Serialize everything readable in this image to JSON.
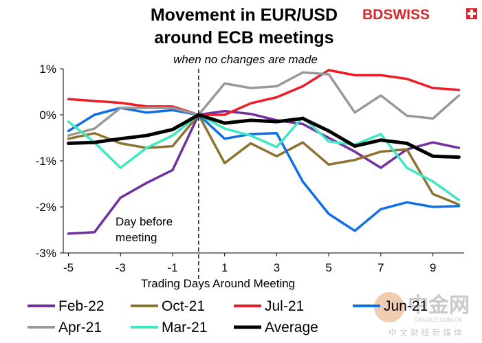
{
  "chart_data": {
    "type": "line",
    "title_line1": "Movement in EUR/USD",
    "title_line2": "around ECB meetings",
    "subtitle": "when no changes are made",
    "xlabel": "Trading Days Around Meeting",
    "ylabel": "",
    "x": [
      -5,
      -4,
      -3,
      -2,
      -1,
      0,
      1,
      2,
      3,
      4,
      5,
      6,
      7,
      8,
      9,
      10
    ],
    "x_tick_labels": [
      "-5",
      "-3",
      "-1",
      "1",
      "3",
      "5",
      "7",
      "9"
    ],
    "x_tick_values": [
      -5,
      -3,
      -1,
      1,
      3,
      5,
      7,
      9
    ],
    "xlim": [
      -5.2,
      10.2
    ],
    "y_tick_labels": [
      "1%",
      "0%",
      "-1%",
      "-2%",
      "-3%"
    ],
    "y_tick_values": [
      1,
      0,
      -1,
      -2,
      -3
    ],
    "ylim": [
      -3,
      1
    ],
    "grid": false,
    "reference_line_x": 0,
    "annotation": [
      "Day before",
      "meeting"
    ],
    "legend_position": "bottom",
    "series": [
      {
        "name": "Feb-22",
        "color": "#7030a0",
        "values": [
          -2.58,
          -2.55,
          -1.8,
          -1.48,
          -1.2,
          0.0,
          0.08,
          0.02,
          -0.12,
          -0.2,
          -0.5,
          -0.8,
          -1.15,
          -0.75,
          -0.6,
          -0.72
        ]
      },
      {
        "name": "Oct-21",
        "color": "#8c7330",
        "values": [
          -0.52,
          -0.4,
          -0.62,
          -0.72,
          -0.68,
          0.0,
          -1.05,
          -0.62,
          -0.9,
          -0.6,
          -1.08,
          -0.98,
          -0.8,
          -0.75,
          -1.72,
          -1.95
        ]
      },
      {
        "name": "Jul-21",
        "color": "#ee1c25",
        "values": [
          0.34,
          0.3,
          0.26,
          0.18,
          0.18,
          0.0,
          0.0,
          0.25,
          0.38,
          0.62,
          0.97,
          0.86,
          0.86,
          0.78,
          0.58,
          0.54
        ]
      },
      {
        "name": "Jun-21",
        "color": "#0f6fe8",
        "values": [
          -0.35,
          0.0,
          0.15,
          0.05,
          0.1,
          0.0,
          -0.52,
          -0.42,
          -0.4,
          -1.45,
          -2.15,
          -2.52,
          -2.05,
          -1.9,
          -2.0,
          -1.98
        ]
      },
      {
        "name": "Apr-21",
        "color": "#999999",
        "values": [
          -0.45,
          -0.3,
          0.15,
          0.15,
          0.15,
          0.0,
          0.68,
          0.58,
          0.62,
          0.92,
          0.88,
          0.05,
          0.42,
          -0.02,
          -0.08,
          0.42
        ]
      },
      {
        "name": "Mar-21",
        "color": "#3ee8c0",
        "values": [
          -0.15,
          -0.6,
          -1.15,
          -0.72,
          -0.45,
          0.0,
          -0.3,
          -0.45,
          -0.7,
          -0.05,
          -0.58,
          -0.65,
          -0.42,
          -1.15,
          -1.45,
          -1.85
        ]
      },
      {
        "name": "Average",
        "color": "#000000",
        "values": [
          -0.62,
          -0.6,
          -0.52,
          -0.45,
          -0.32,
          0.0,
          -0.18,
          -0.12,
          -0.15,
          -0.08,
          -0.35,
          -0.68,
          -0.55,
          -0.62,
          -0.9,
          -0.92
        ]
      }
    ]
  },
  "brand": {
    "text": "BDSWISS",
    "color": "#d9262b"
  },
  "watermark": {
    "main": "中金网",
    "site": "CNGOLD.COM.CN",
    "tagline": "中 文 财 经 新 媒 体"
  }
}
